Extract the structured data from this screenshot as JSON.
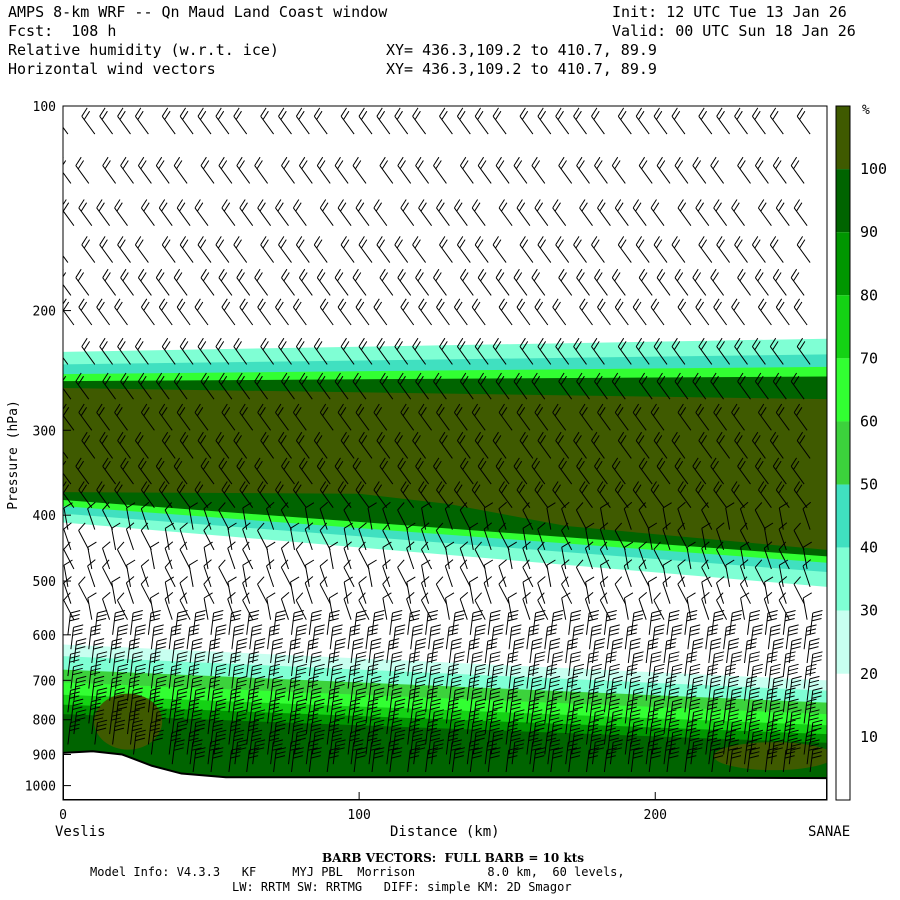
{
  "header": {
    "model_title": "AMPS 8-km WRF -- Qn Maud Land Coast window",
    "init": "Init: 12 UTC Tue 13 Jan 26",
    "forecast": "Fcst:  108 h",
    "valid": "Valid: 00 UTC Sun 18 Jan 26",
    "field1": "Relative humidity (w.r.t. ice)",
    "field1_xy": "XY= 436.3,109.2 to 410.7, 89.9",
    "field2": "Horizontal wind vectors",
    "field2_xy": "XY= 436.3,109.2 to 410.7, 89.9"
  },
  "axes": {
    "ylabel": "Pressure (hPa)",
    "xlabel": "Distance (km)",
    "left_end": "Veslis",
    "right_end": "SANAE",
    "x_ticks": [
      "0",
      "100",
      "200"
    ],
    "y_ticks": [
      "100",
      "200",
      "300",
      "400",
      "500",
      "600",
      "700",
      "800",
      "900",
      "1000"
    ]
  },
  "colorbar": {
    "unit": "%",
    "labels": [
      "100",
      "90",
      "80",
      "70",
      "60",
      "50",
      "40",
      "30",
      "20",
      "10"
    ],
    "colors": [
      "#3f5a00",
      "#006400",
      "#009600",
      "#14d214",
      "#32ff32",
      "#3cd23c",
      "#40e0c0",
      "#7fffd4",
      "#c8fff0",
      "#ffffff",
      "#ffffff"
    ]
  },
  "footer": {
    "barb_note": "BARB VECTORS:  FULL BARB = 10 kts",
    "model_info_1": "Model Info: V4.3.3   KF     MYJ PBL  Morrison          8.0 km,  60 levels,",
    "model_info_2": "LW: RRTM SW: RRTMG   DIFF: simple KM: 2D Smagor"
  },
  "chart_data": {
    "type": "heatmap",
    "title": "Relative humidity (w.r.t. ice)",
    "xlabel": "Distance (km)",
    "ylabel": "Pressure (hPa)",
    "xlim": [
      0,
      258
    ],
    "ylim": [
      100,
      1050
    ],
    "y_scale": "log",
    "colorbar_levels": [
      10,
      20,
      30,
      40,
      50,
      60,
      70,
      80,
      90,
      100
    ],
    "layers": [
      {
        "band": "upper moist layer",
        "rh_percent": ">100",
        "pressure_top_hPa_at_0km": 260,
        "pressure_bottom_hPa_at_0km": 370,
        "pressure_top_hPa_at_258km": 270,
        "pressure_bottom_hPa_at_258km": 450
      },
      {
        "band": "upper moist fringe",
        "rh_percent": "40-90",
        "pressure_top_hPa_at_0km": 230,
        "pressure_bottom_hPa_at_0km": 410,
        "pressure_top_hPa_at_258km": 220,
        "pressure_bottom_hPa_at_258km": 510
      },
      {
        "band": "lower moist layer",
        "rh_percent": "50-100",
        "pressure_top_hPa_at_0km": 620,
        "pressure_top_hPa_at_258km": 700,
        "surface": true
      }
    ],
    "terrain": [
      [
        0,
        895
      ],
      [
        10,
        890
      ],
      [
        20,
        900
      ],
      [
        30,
        935
      ],
      [
        40,
        960
      ],
      [
        55,
        972
      ],
      [
        100,
        972
      ],
      [
        150,
        972
      ],
      [
        200,
        973
      ],
      [
        258,
        975
      ]
    ]
  }
}
